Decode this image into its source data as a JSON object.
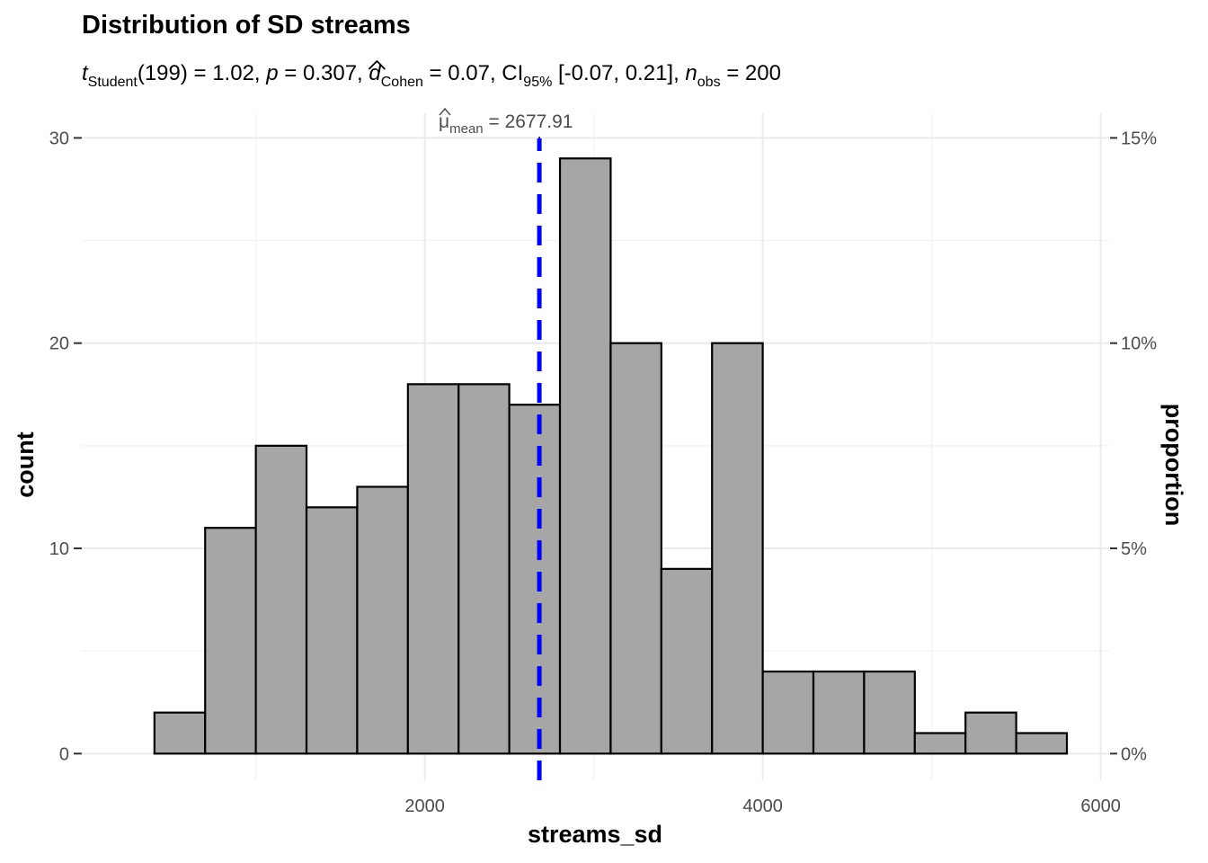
{
  "chart_data": {
    "type": "bar",
    "title": "Distribution of SD streams",
    "subtitle": {
      "t_symbol": "t",
      "t_sub": "Student",
      "t_value": "(199) = 1.02, ",
      "p_symbol": "p",
      "p_value": " = 0.307, ",
      "d_symbol": "d",
      "d_sub": "Cohen",
      "d_value": " = 0.07, CI",
      "ci_sub": "95%",
      "ci_value": " [-0.07, 0.21], ",
      "n_symbol": "n",
      "n_sub": "obs",
      "n_value": " = 200"
    },
    "xlabel": "streams_sd",
    "ylabel": "count",
    "ylabel_right": "proportion",
    "xlim": [
      -30,
      6050
    ],
    "ylim": [
      -1.3,
      31.2
    ],
    "x_ticks": [
      2000,
      4000,
      6000
    ],
    "x_tick_labels": [
      "2000",
      "4000",
      "6000"
    ],
    "y_ticks": [
      0,
      10,
      20,
      30
    ],
    "y_tick_labels": [
      "0",
      "10",
      "20",
      "30"
    ],
    "y_right_ticks": [
      0,
      10,
      20,
      30
    ],
    "y_right_tick_labels": [
      "0%",
      "5%",
      "10%",
      "15%"
    ],
    "grid": true,
    "bins": {
      "left_edges": [
        400,
        700,
        1000,
        1300,
        1600,
        1900,
        2200,
        2500,
        2800,
        3100,
        3400,
        3700,
        4000,
        4300,
        4600,
        4900,
        5200,
        5500
      ],
      "width": 300
    },
    "values": [
      2,
      11,
      15,
      12,
      13,
      18,
      18,
      17,
      29,
      20,
      9,
      20,
      4,
      4,
      4,
      1,
      2,
      1
    ],
    "mean_line": {
      "value": 2677.91,
      "label_symbol": "μ",
      "label_sub": "mean",
      "label_value": " = 2677.91",
      "color": "#0000ff"
    },
    "bar_fill": "#a6a6a6",
    "bar_stroke": "#000000"
  }
}
